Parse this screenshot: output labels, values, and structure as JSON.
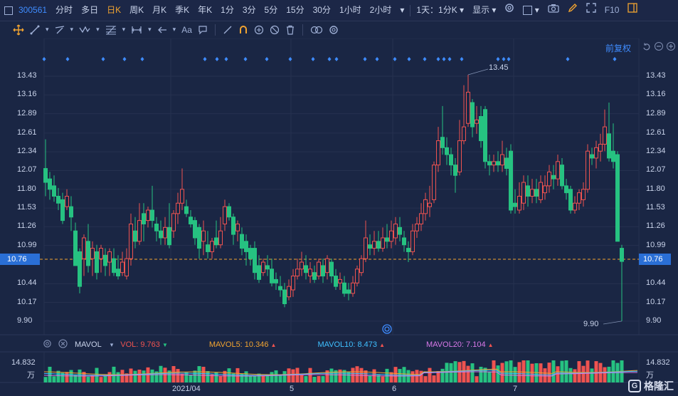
{
  "header": {
    "stock_code": "300561",
    "tabs": [
      "分时",
      "多日",
      "日K",
      "周K",
      "月K",
      "季K",
      "年K",
      "1分",
      "3分",
      "5分",
      "15分",
      "30分",
      "1小时",
      "2小时"
    ],
    "active_tab": "日K",
    "period_select": "1天：1分K",
    "display_select": "显示",
    "right_label": "F10"
  },
  "chart": {
    "adjust_label": "前复权",
    "y_ticks": [
      "13.43",
      "13.16",
      "12.89",
      "12.61",
      "12.34",
      "12.07",
      "11.80",
      "11.53",
      "11.26",
      "10.99",
      "10.76",
      "10.44",
      "10.17",
      "9.90"
    ],
    "current_price": "10.76",
    "high_label": "13.45",
    "low_label": "9.90",
    "x_labels": [
      "2021/04",
      "5",
      "6",
      "7"
    ]
  },
  "volume": {
    "title": "MAVOL",
    "vol": "VOL: 9.763",
    "ma5": "MAVOL5: 10.346",
    "ma10": "MAVOL10: 8.473",
    "ma20": "MAVOL20: 7.104",
    "scale_value": "14.832",
    "unit": "万"
  },
  "colors": {
    "up": "#ef5350",
    "down": "#26c281",
    "accent": "#3f8cff",
    "active": "#f2a430",
    "ma5": "#f2a430",
    "ma10": "#3fc0ff",
    "ma20": "#d878e8"
  },
  "logo_text": "格隆汇"
}
